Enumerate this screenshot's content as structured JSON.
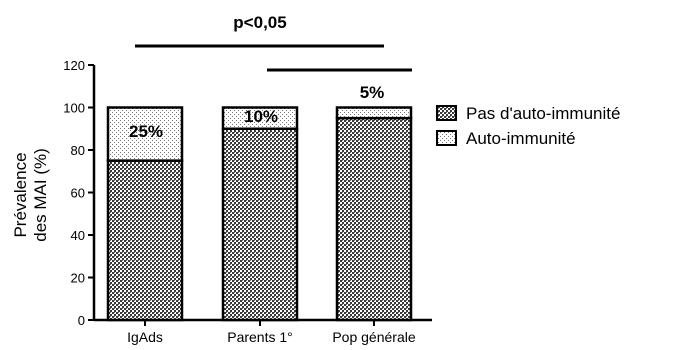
{
  "chart_data": {
    "type": "bar",
    "stacked": true,
    "categories": [
      "IgAds",
      "Parents 1°",
      "Pop générale"
    ],
    "series": [
      {
        "name": "Pas d'auto-immunité",
        "values": [
          75,
          90,
          95
        ]
      },
      {
        "name": "Auto-immunité",
        "values": [
          25,
          10,
          5
        ]
      }
    ],
    "bar_labels": [
      "25%",
      "10%",
      "5%"
    ],
    "ylabel_lines": [
      "Prévalence",
      "des MAI (%)"
    ],
    "yticks": [
      0,
      20,
      40,
      60,
      80,
      100,
      120
    ],
    "ylim": [
      0,
      120
    ],
    "significance": {
      "label": "p<0,05",
      "brackets": [
        {
          "from": "IgAds",
          "to": "Pop générale"
        },
        {
          "from": "Parents 1°",
          "to": "Pop générale"
        }
      ]
    },
    "legend_position": "right",
    "colors": {
      "lower_fill": "#4a4a4a",
      "upper_fill": "#e6e6e6",
      "stroke": "#000000"
    }
  }
}
